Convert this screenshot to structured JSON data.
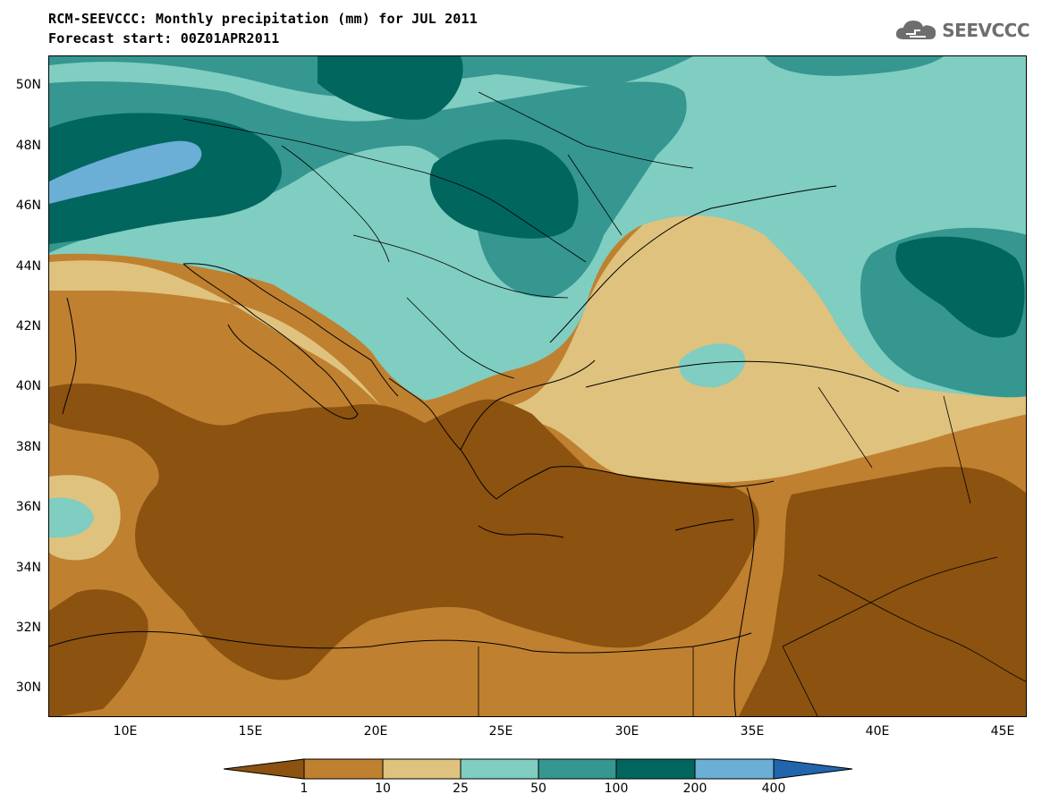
{
  "header": {
    "title_line1": "RCM-SEEVCCC: Monthly precipitation (mm) for JUL 2011",
    "title_line2": "Forecast start: 00Z01APR2011",
    "logo_text": "SEEVCCC",
    "logo_icon": "cloud-icon",
    "logo_color": "#6e6e6e"
  },
  "map": {
    "extent": {
      "lon_min": 7,
      "lon_max": 46,
      "lat_min": 29,
      "lat_max": 51
    },
    "lat_ticks": [
      {
        "value": 30,
        "label": "30N"
      },
      {
        "value": 32,
        "label": "32N"
      },
      {
        "value": 34,
        "label": "34N"
      },
      {
        "value": 36,
        "label": "36N"
      },
      {
        "value": 38,
        "label": "38N"
      },
      {
        "value": 40,
        "label": "40N"
      },
      {
        "value": 42,
        "label": "42N"
      },
      {
        "value": 44,
        "label": "44N"
      },
      {
        "value": 46,
        "label": "46N"
      },
      {
        "value": 48,
        "label": "48N"
      },
      {
        "value": 50,
        "label": "50N"
      }
    ],
    "lon_ticks": [
      {
        "value": 10,
        "label": "10E"
      },
      {
        "value": 15,
        "label": "15E"
      },
      {
        "value": 20,
        "label": "20E"
      },
      {
        "value": 25,
        "label": "25E"
      },
      {
        "value": 30,
        "label": "30E"
      },
      {
        "value": 35,
        "label": "35E"
      },
      {
        "value": 40,
        "label": "40E"
      },
      {
        "value": 45,
        "label": "45E"
      }
    ]
  },
  "legend": {
    "unit": "mm",
    "colors": [
      "#8b5210",
      "#bf8030",
      "#dfc27d",
      "#80cdc1",
      "#35978f",
      "#01665e",
      "#6baed6",
      "#2166ac"
    ],
    "labels": [
      "1",
      "10",
      "25",
      "50",
      "100",
      "200",
      "400"
    ]
  }
}
